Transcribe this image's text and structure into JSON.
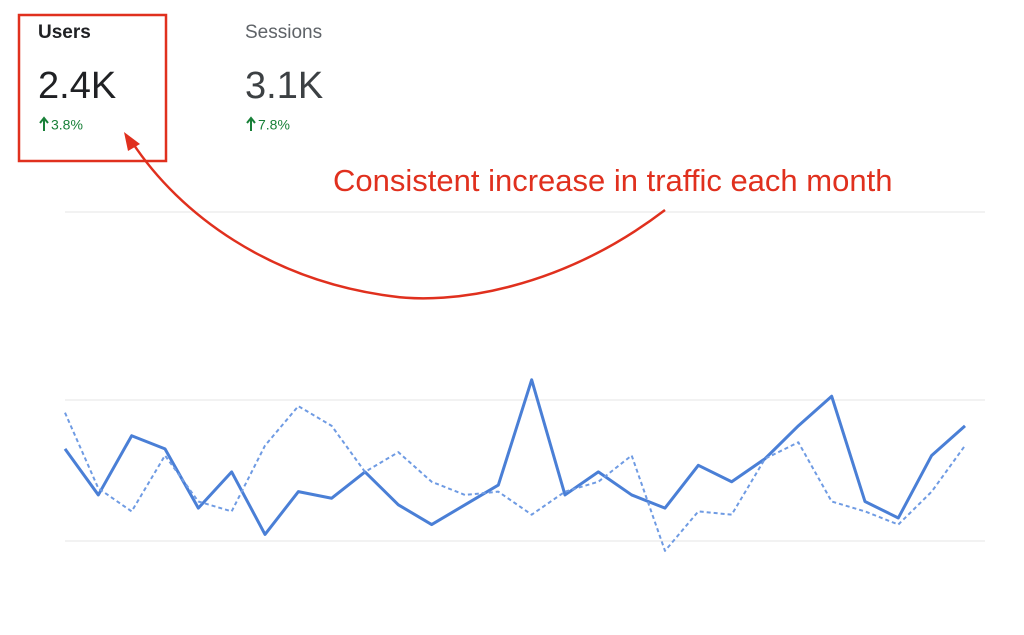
{
  "metrics": [
    {
      "label": "Users",
      "value": "2.4K",
      "change": "3.8%"
    },
    {
      "label": "Sessions",
      "value": "3.1K",
      "change": "7.8%"
    }
  ],
  "annotation": "Consistent increase in traffic each month",
  "chart_data": {
    "type": "line",
    "ylim": [
      0,
      100
    ],
    "series": [
      {
        "color": "#4a7fd6",
        "style": "solid",
        "values": [
          28,
          14,
          32,
          28,
          10,
          21,
          2,
          15,
          13,
          21,
          11,
          5,
          11,
          17,
          49,
          14,
          21,
          14,
          10,
          23,
          18,
          25,
          35,
          44,
          12,
          7,
          26,
          35
        ]
      },
      {
        "color": "#6f9be3",
        "style": "dashed",
        "values": [
          39,
          16,
          9,
          26,
          12,
          9,
          29,
          41,
          35,
          21,
          27,
          18,
          14,
          15,
          8,
          15,
          18,
          26,
          -3,
          9,
          8,
          25,
          30,
          12,
          9,
          5,
          15,
          29
        ]
      }
    ]
  }
}
